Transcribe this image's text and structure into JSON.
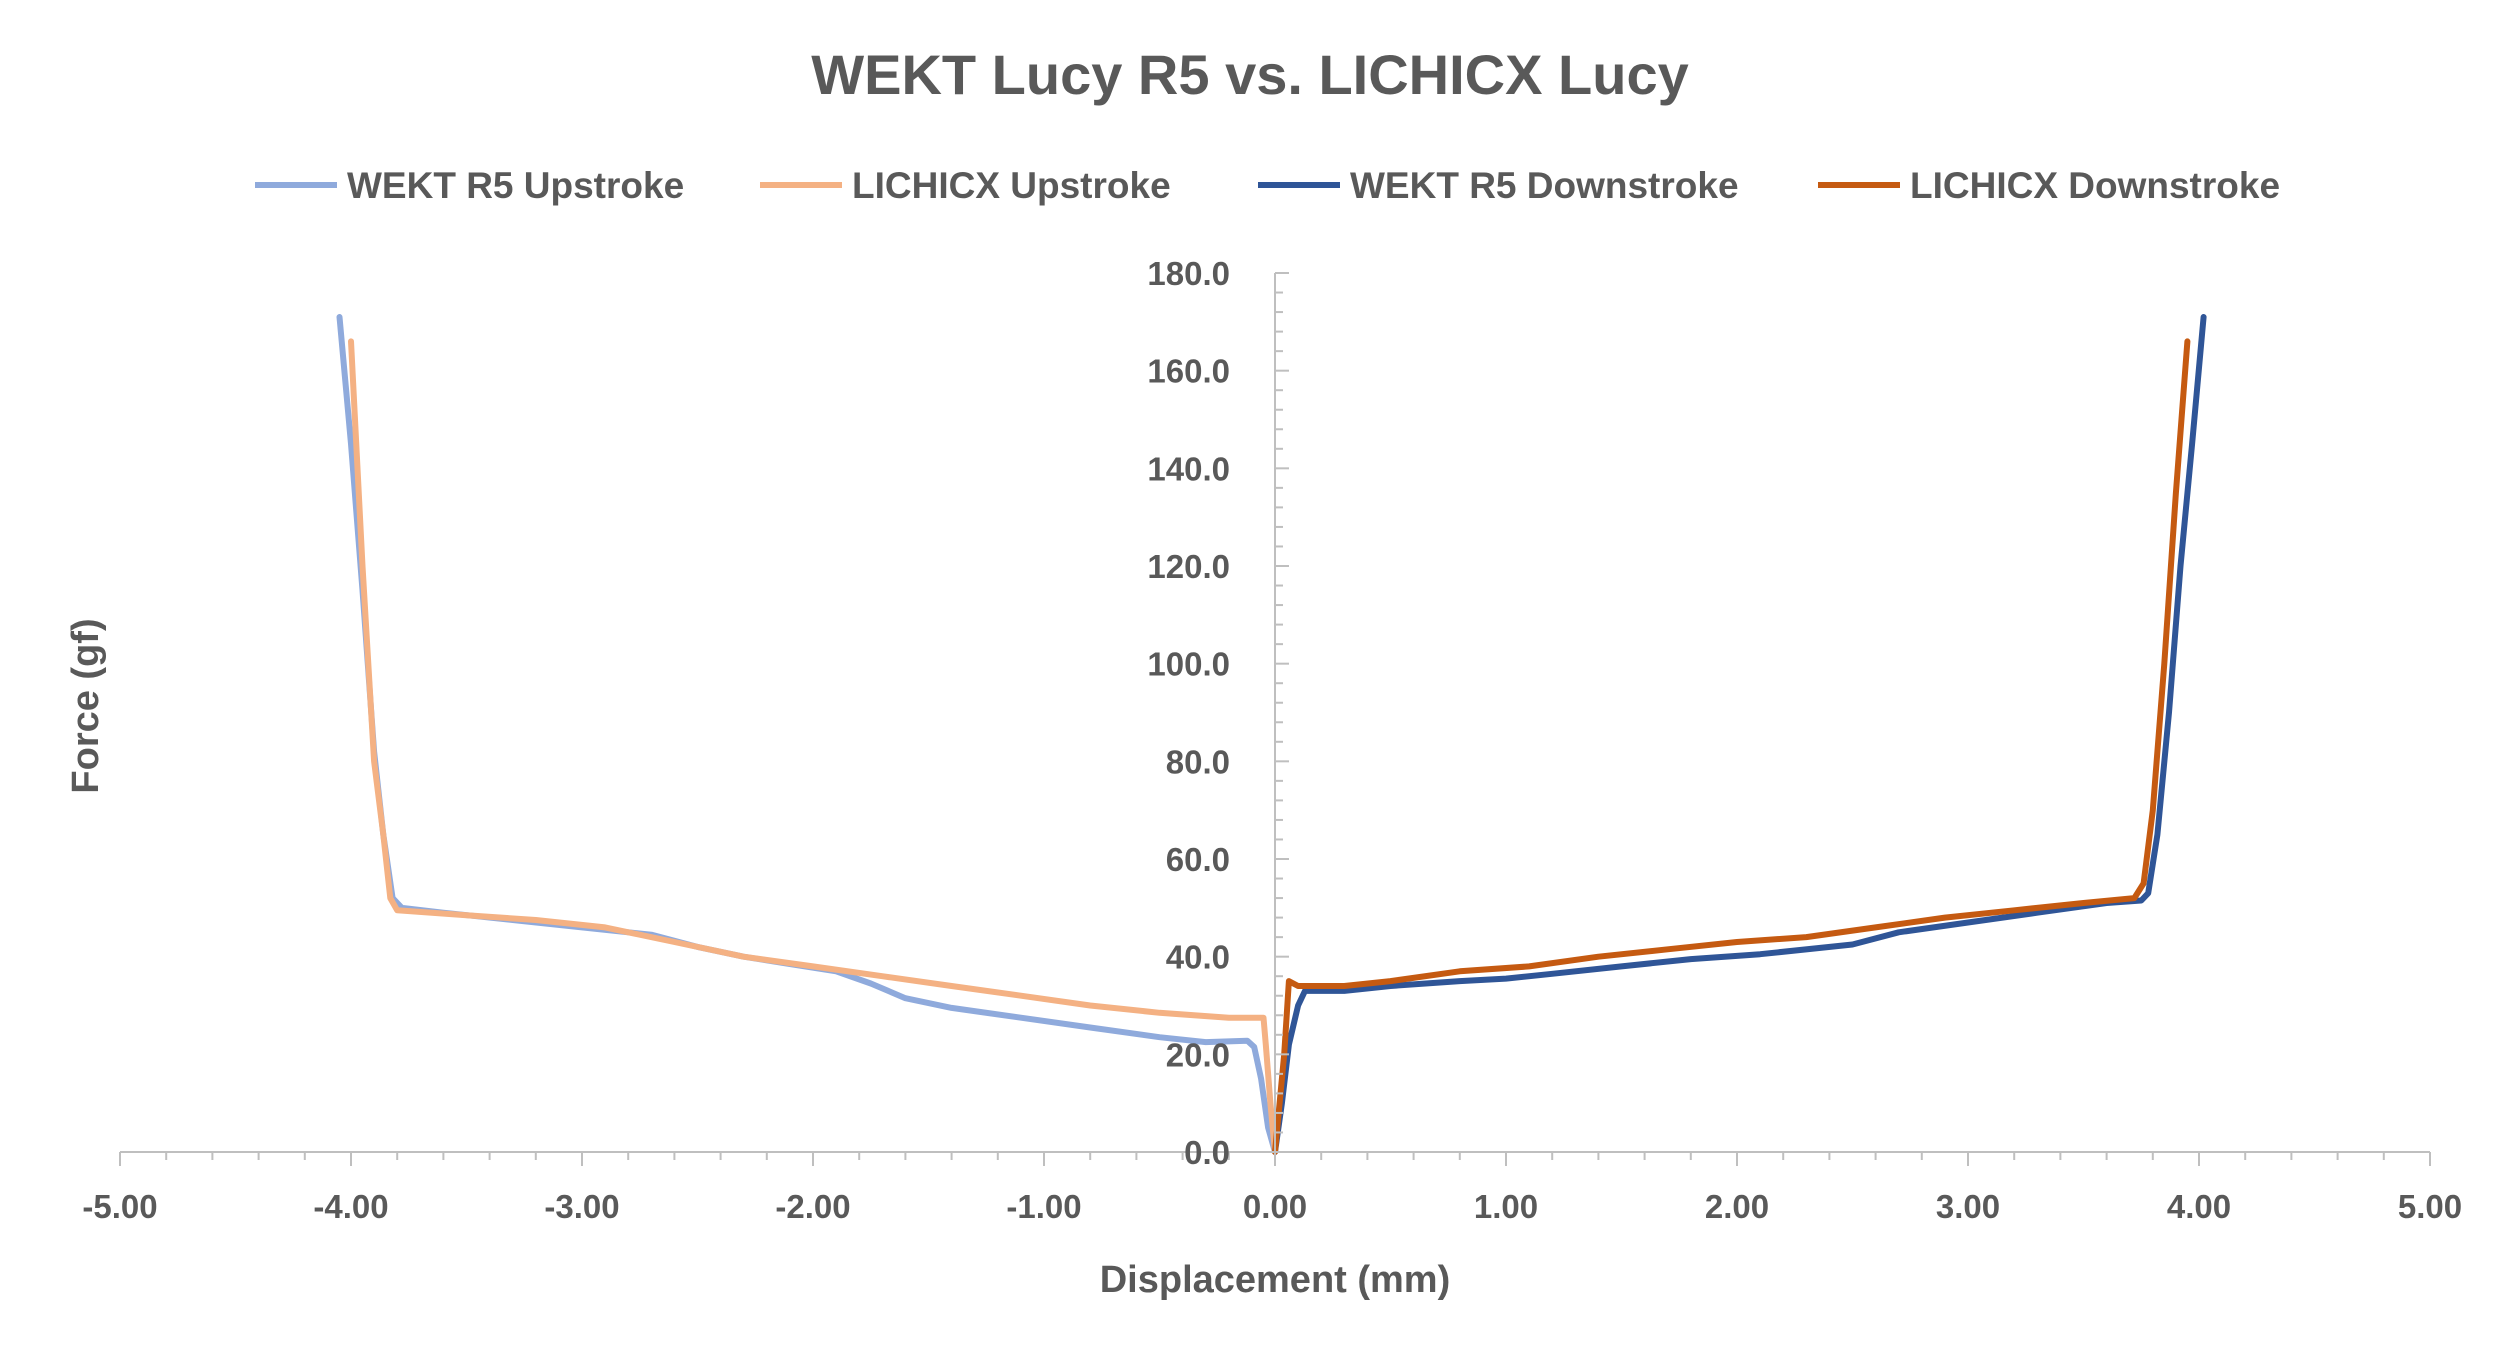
{
  "chart_data": {
    "type": "line",
    "title": "WEKT Lucy R5 vs. LICHICX Lucy",
    "xlabel": "Displacement (mm)",
    "ylabel": "Force (gf)",
    "xlim": [
      -5,
      5
    ],
    "ylim": [
      0,
      180
    ],
    "x_ticks": [
      "-5.00",
      "-4.00",
      "-3.00",
      "-2.00",
      "-1.00",
      "0.00",
      "1.00",
      "2.00",
      "3.00",
      "4.00",
      "5.00"
    ],
    "y_ticks": [
      "0.0",
      "20.0",
      "40.0",
      "60.0",
      "80.0",
      "100.0",
      "120.0",
      "140.0",
      "160.0",
      "180.0"
    ],
    "grid": false,
    "legend_position": "top",
    "series": [
      {
        "name": "WEKT R5 Upstroke",
        "color": "#8faadc",
        "points": [
          [
            0.0,
            0.0
          ],
          [
            -0.03,
            5.0
          ],
          [
            -0.06,
            15.0
          ],
          [
            -0.09,
            21.5
          ],
          [
            -0.12,
            22.8
          ],
          [
            -0.3,
            22.5
          ],
          [
            -0.5,
            23.5
          ],
          [
            -0.8,
            25.5
          ],
          [
            -1.1,
            27.5
          ],
          [
            -1.4,
            29.5
          ],
          [
            -1.6,
            31.5
          ],
          [
            -1.75,
            34.5
          ],
          [
            -1.9,
            37.0
          ],
          [
            -2.1,
            38.5
          ],
          [
            -2.3,
            40.0
          ],
          [
            -2.5,
            42.0
          ],
          [
            -2.7,
            44.5
          ],
          [
            -3.0,
            46.0
          ],
          [
            -3.3,
            47.5
          ],
          [
            -3.6,
            49.0
          ],
          [
            -3.78,
            50.0
          ],
          [
            -3.82,
            52.0
          ],
          [
            -3.86,
            65.0
          ],
          [
            -3.9,
            82.0
          ],
          [
            -3.95,
            115.0
          ],
          [
            -4.0,
            145.0
          ],
          [
            -4.05,
            171.0
          ]
        ]
      },
      {
        "name": "LICHICX Upstroke",
        "color": "#f4b183",
        "points": [
          [
            0.0,
            0.0
          ],
          [
            -0.02,
            10.0
          ],
          [
            -0.04,
            22.0
          ],
          [
            -0.05,
            27.5
          ],
          [
            -0.2,
            27.5
          ],
          [
            -0.5,
            28.5
          ],
          [
            -0.8,
            30.0
          ],
          [
            -1.1,
            32.0
          ],
          [
            -1.4,
            34.0
          ],
          [
            -1.7,
            36.0
          ],
          [
            -2.0,
            38.0
          ],
          [
            -2.3,
            40.0
          ],
          [
            -2.6,
            43.0
          ],
          [
            -2.9,
            46.0
          ],
          [
            -3.2,
            47.5
          ],
          [
            -3.5,
            48.5
          ],
          [
            -3.8,
            49.5
          ],
          [
            -3.83,
            52.0
          ],
          [
            -3.86,
            65.0
          ],
          [
            -3.9,
            80.0
          ],
          [
            -3.95,
            120.0
          ],
          [
            -4.0,
            166.0
          ]
        ]
      },
      {
        "name": "WEKT R5 Downstroke",
        "color": "#2f5597",
        "points": [
          [
            0.0,
            0.0
          ],
          [
            0.03,
            10.0
          ],
          [
            0.06,
            22.0
          ],
          [
            0.1,
            30.0
          ],
          [
            0.13,
            33.0
          ],
          [
            0.3,
            33.0
          ],
          [
            0.5,
            34.0
          ],
          [
            0.8,
            35.0
          ],
          [
            1.0,
            35.5
          ],
          [
            1.2,
            36.5
          ],
          [
            1.5,
            38.0
          ],
          [
            1.8,
            39.5
          ],
          [
            2.1,
            40.5
          ],
          [
            2.5,
            42.5
          ],
          [
            2.7,
            45.0
          ],
          [
            3.0,
            47.0
          ],
          [
            3.3,
            49.0
          ],
          [
            3.6,
            51.0
          ],
          [
            3.75,
            51.5
          ],
          [
            3.78,
            53.0
          ],
          [
            3.82,
            65.0
          ],
          [
            3.87,
            90.0
          ],
          [
            3.92,
            120.0
          ],
          [
            3.97,
            145.0
          ],
          [
            4.02,
            171.0
          ]
        ]
      },
      {
        "name": "LICHICX Downstroke",
        "color": "#c55a11",
        "points": [
          [
            0.0,
            0.0
          ],
          [
            0.02,
            10.0
          ],
          [
            0.04,
            20.0
          ],
          [
            0.06,
            35.0
          ],
          [
            0.1,
            34.0
          ],
          [
            0.3,
            34.0
          ],
          [
            0.5,
            35.0
          ],
          [
            0.8,
            37.0
          ],
          [
            1.1,
            38.0
          ],
          [
            1.4,
            40.0
          ],
          [
            1.7,
            41.5
          ],
          [
            2.0,
            43.0
          ],
          [
            2.3,
            44.0
          ],
          [
            2.6,
            46.0
          ],
          [
            2.9,
            48.0
          ],
          [
            3.2,
            49.5
          ],
          [
            3.5,
            51.0
          ],
          [
            3.72,
            52.0
          ],
          [
            3.76,
            55.0
          ],
          [
            3.8,
            70.0
          ],
          [
            3.85,
            100.0
          ],
          [
            3.9,
            135.0
          ],
          [
            3.95,
            166.0
          ]
        ]
      }
    ]
  }
}
